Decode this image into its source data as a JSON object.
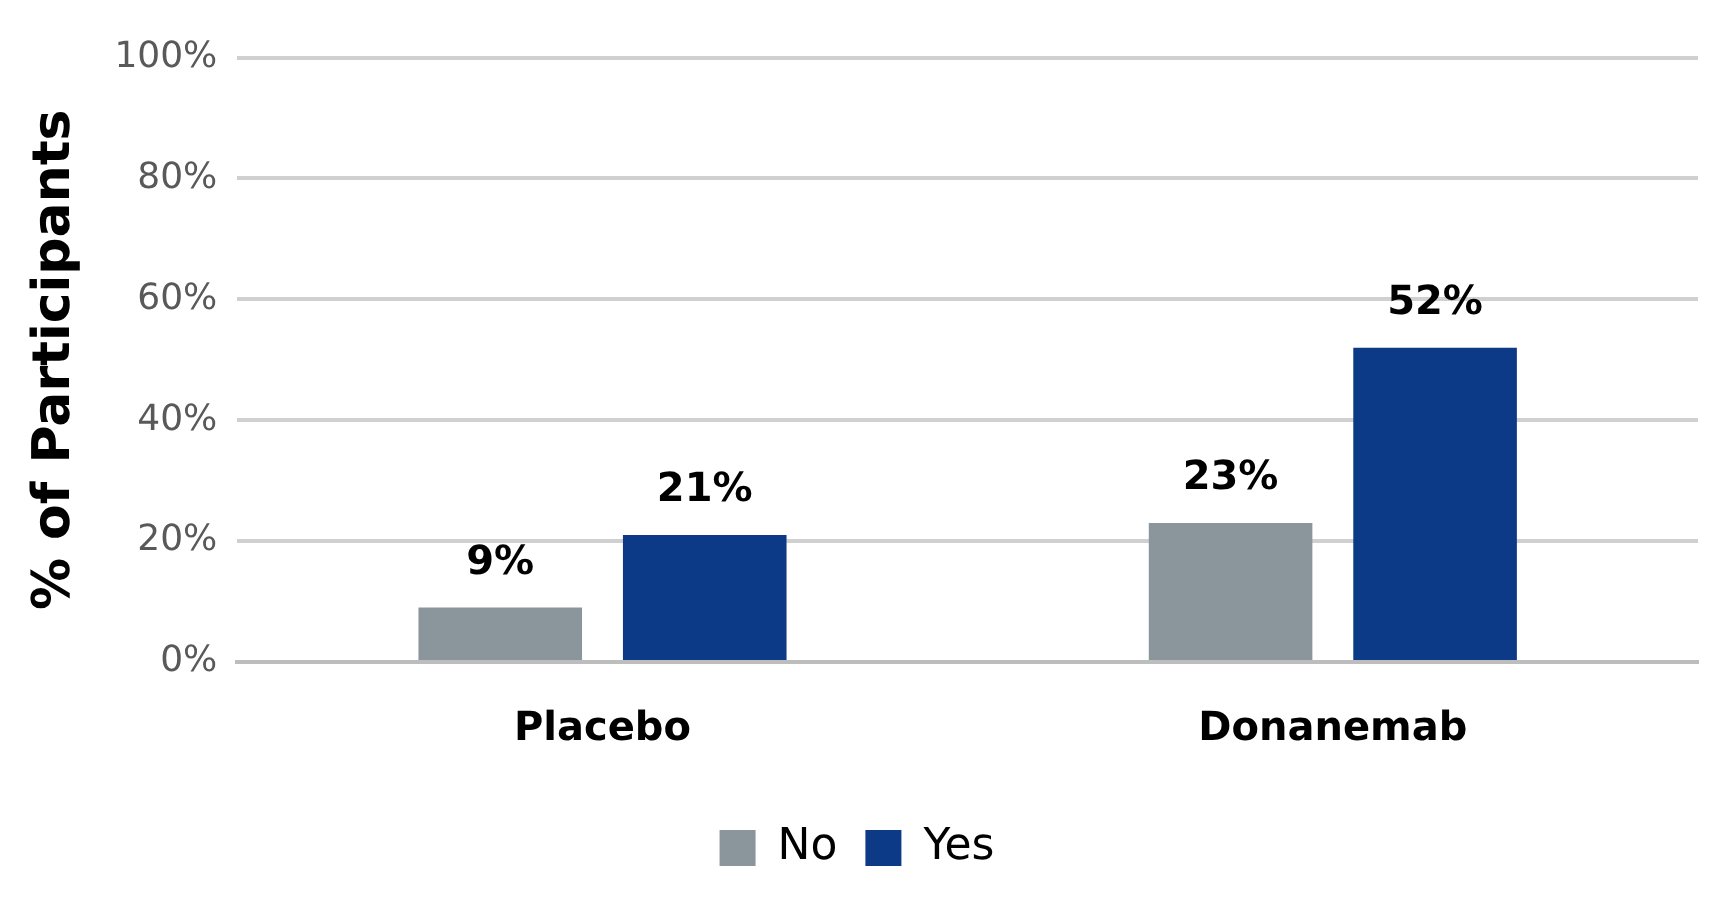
{
  "chart_data": {
    "type": "bar",
    "ylabel": "% of Participants",
    "categories": [
      "Placebo",
      "Donanemab"
    ],
    "series": [
      {
        "name": "No",
        "color": "#8a969c",
        "values": [
          9,
          23
        ],
        "value_labels": [
          "9%",
          "23%"
        ]
      },
      {
        "name": "Yes",
        "color": "#0c3a86",
        "values": [
          21,
          52
        ],
        "value_labels": [
          "21%",
          "52%"
        ]
      }
    ],
    "ylim": [
      0,
      100
    ],
    "yticks": [
      {
        "value": 0,
        "label": "0%"
      },
      {
        "value": 20,
        "label": "20%"
      },
      {
        "value": 40,
        "label": "40%"
      },
      {
        "value": 60,
        "label": "60%"
      },
      {
        "value": 80,
        "label": "80%"
      },
      {
        "value": 100,
        "label": "100%"
      }
    ],
    "grid": "y",
    "legend": "bottom"
  }
}
